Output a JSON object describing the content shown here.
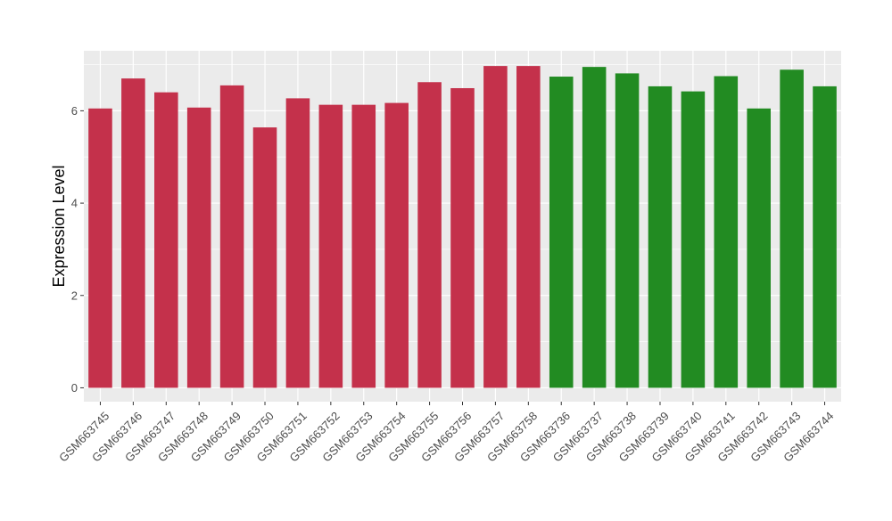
{
  "chart_data": {
    "type": "bar",
    "title": "",
    "xlabel": "",
    "ylabel": "Expression Level",
    "ylim": [
      -0.3,
      7.3
    ],
    "yticks": [
      0,
      2,
      4,
      6
    ],
    "grid": true,
    "categories": [
      "GSM663745",
      "GSM663746",
      "GSM663747",
      "GSM663748",
      "GSM663749",
      "GSM663750",
      "GSM663751",
      "GSM663752",
      "GSM663753",
      "GSM663754",
      "GSM663755",
      "GSM663756",
      "GSM663757",
      "GSM663758",
      "GSM663736",
      "GSM663737",
      "GSM663738",
      "GSM663739",
      "GSM663740",
      "GSM663741",
      "GSM663742",
      "GSM663743",
      "GSM663744"
    ],
    "values": [
      6.05,
      6.7,
      6.4,
      6.07,
      6.55,
      5.64,
      6.27,
      6.13,
      6.13,
      6.17,
      6.62,
      6.49,
      6.97,
      6.97,
      6.74,
      6.95,
      6.81,
      6.53,
      6.42,
      6.75,
      6.05,
      6.89,
      6.53
    ],
    "groups": [
      "a",
      "a",
      "a",
      "a",
      "a",
      "a",
      "a",
      "a",
      "a",
      "a",
      "a",
      "a",
      "a",
      "a",
      "b",
      "b",
      "b",
      "b",
      "b",
      "b",
      "b",
      "b",
      "b"
    ],
    "group_colors": {
      "a": "#C4314B",
      "b": "#228B22"
    },
    "panel_background": "#EBEBEB",
    "gridline_color": "#FFFFFF"
  }
}
